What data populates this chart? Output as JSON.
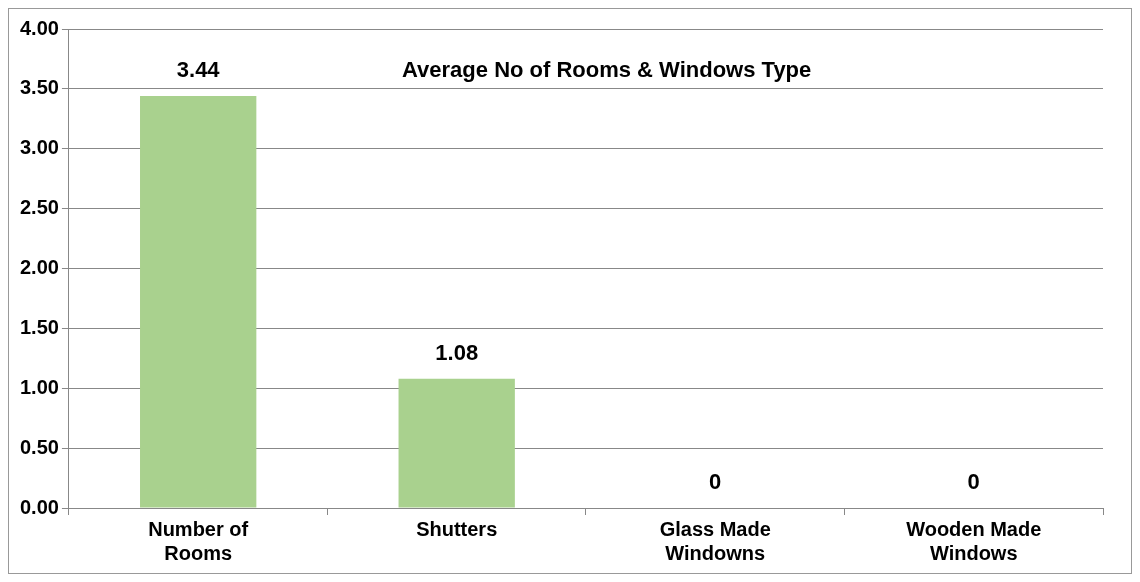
{
  "chart_data": {
    "type": "bar",
    "title": "Average No of Rooms & Windows Type",
    "categories": [
      "Number of Rooms",
      "Shutters",
      "Glass Made Windowns",
      "Wooden Made Windows"
    ],
    "values": [
      3.44,
      1.08,
      0,
      0
    ],
    "color": "#a9d18e",
    "ylim": [
      0,
      4
    ],
    "yticks": [
      {
        "value": 0,
        "label": "0.00"
      },
      {
        "value": 0.5,
        "label": "0.50"
      },
      {
        "value": 1,
        "label": "1.00"
      },
      {
        "value": 1.5,
        "label": "1.50"
      },
      {
        "value": 2,
        "label": "2.00"
      },
      {
        "value": 2.5,
        "label": "2.50"
      },
      {
        "value": 3,
        "label": "3.00"
      },
      {
        "value": 3.5,
        "label": "3.50"
      },
      {
        "value": 4,
        "label": "4.00"
      }
    ],
    "grid": "y",
    "data_labels": true,
    "legend": false
  }
}
